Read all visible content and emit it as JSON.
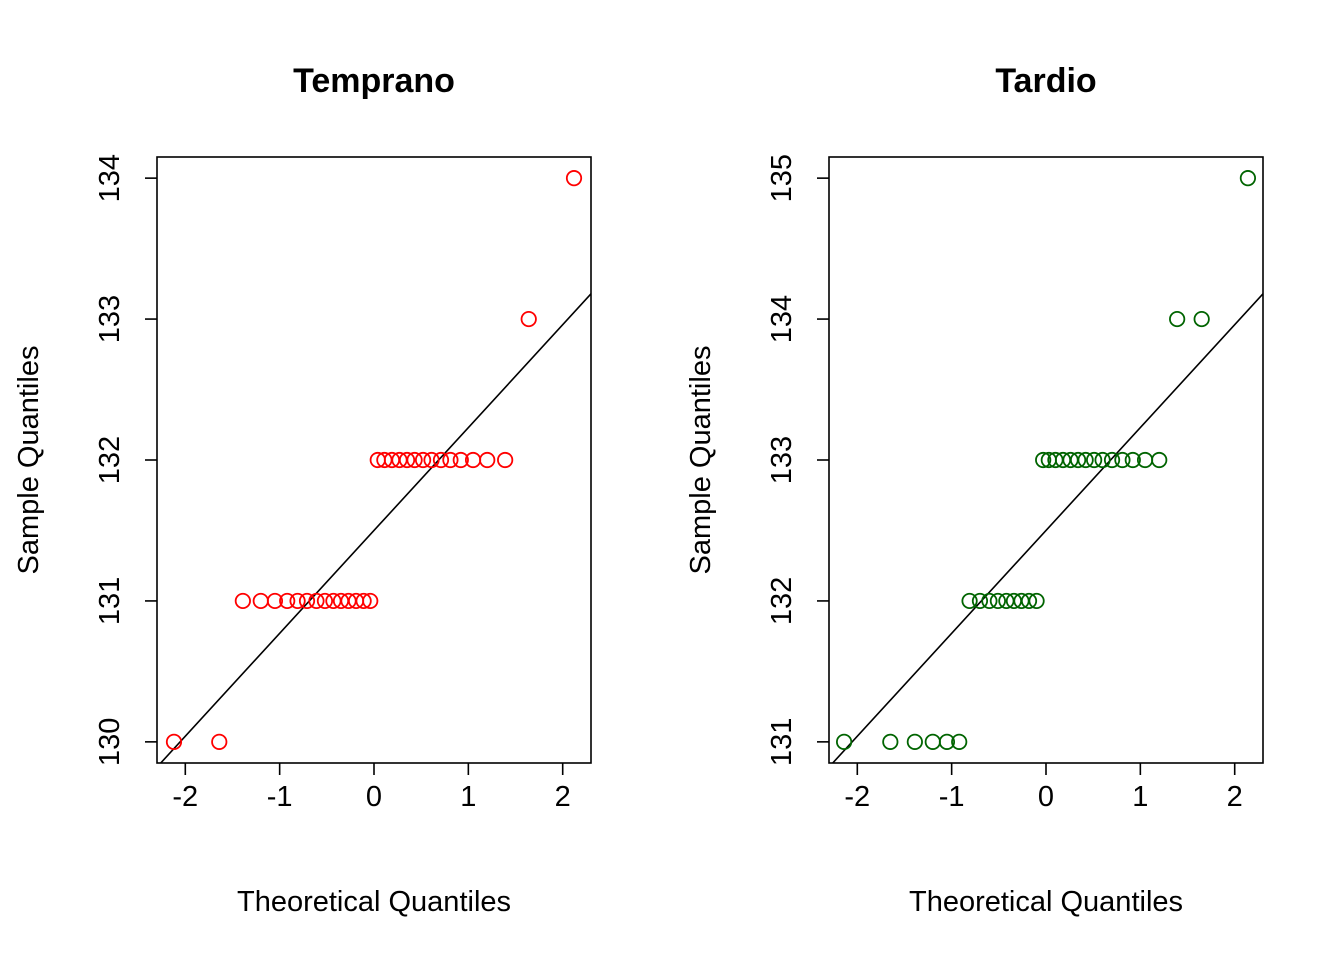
{
  "chart_data": [
    {
      "type": "scatter",
      "title": "Temprano",
      "xlabel": "Theoretical Quantiles",
      "ylabel": "Sample Quantiles",
      "xlim": [
        -2.3,
        2.3
      ],
      "ylim": [
        129.85,
        134.15
      ],
      "xticks": [
        -2,
        -1,
        0,
        1,
        2
      ],
      "yticks": [
        130,
        131,
        132,
        133,
        134
      ],
      "grid": false,
      "color": "#ff0000",
      "x": [
        -2.12,
        -1.64,
        -1.39,
        -1.2,
        -1.05,
        -0.92,
        -0.81,
        -0.71,
        -0.61,
        -0.52,
        -0.43,
        -0.35,
        -0.27,
        -0.19,
        -0.11,
        -0.04,
        0.04,
        0.11,
        0.19,
        0.27,
        0.35,
        0.43,
        0.52,
        0.61,
        0.71,
        0.81,
        0.92,
        1.05,
        1.2,
        1.39,
        1.64,
        2.12
      ],
      "y": [
        130,
        130,
        131,
        131,
        131,
        131,
        131,
        131,
        131,
        131,
        131,
        131,
        131,
        131,
        131,
        131,
        132,
        132,
        132,
        132,
        132,
        132,
        132,
        132,
        132,
        132,
        132,
        132,
        132,
        132,
        133,
        134
      ],
      "ref_line": {
        "intercept": 131.5,
        "slope": 0.73
      }
    },
    {
      "type": "scatter",
      "title": "Tardio",
      "xlabel": "Theoretical Quantiles",
      "ylabel": "Sample Quantiles",
      "xlim": [
        -2.3,
        2.3
      ],
      "ylim": [
        130.85,
        135.15
      ],
      "xticks": [
        -2,
        -1,
        0,
        1,
        2
      ],
      "yticks": [
        131,
        132,
        133,
        134,
        135
      ],
      "grid": false,
      "color": "#006400",
      "x": [
        -2.14,
        -1.65,
        -1.39,
        -1.2,
        -1.05,
        -0.92,
        -0.81,
        -0.7,
        -0.6,
        -0.51,
        -0.42,
        -0.34,
        -0.26,
        -0.18,
        -0.1,
        -0.03,
        0.03,
        0.1,
        0.18,
        0.26,
        0.34,
        0.42,
        0.51,
        0.6,
        0.7,
        0.81,
        0.92,
        1.05,
        1.2,
        1.39,
        1.65,
        2.14
      ],
      "y": [
        131,
        131,
        131,
        131,
        131,
        131,
        132,
        132,
        132,
        132,
        132,
        132,
        132,
        132,
        132,
        133,
        133,
        133,
        133,
        133,
        133,
        133,
        133,
        133,
        133,
        133,
        133,
        133,
        133,
        134,
        134,
        135
      ],
      "ref_line": {
        "intercept": 132.5,
        "slope": 0.73
      }
    }
  ]
}
